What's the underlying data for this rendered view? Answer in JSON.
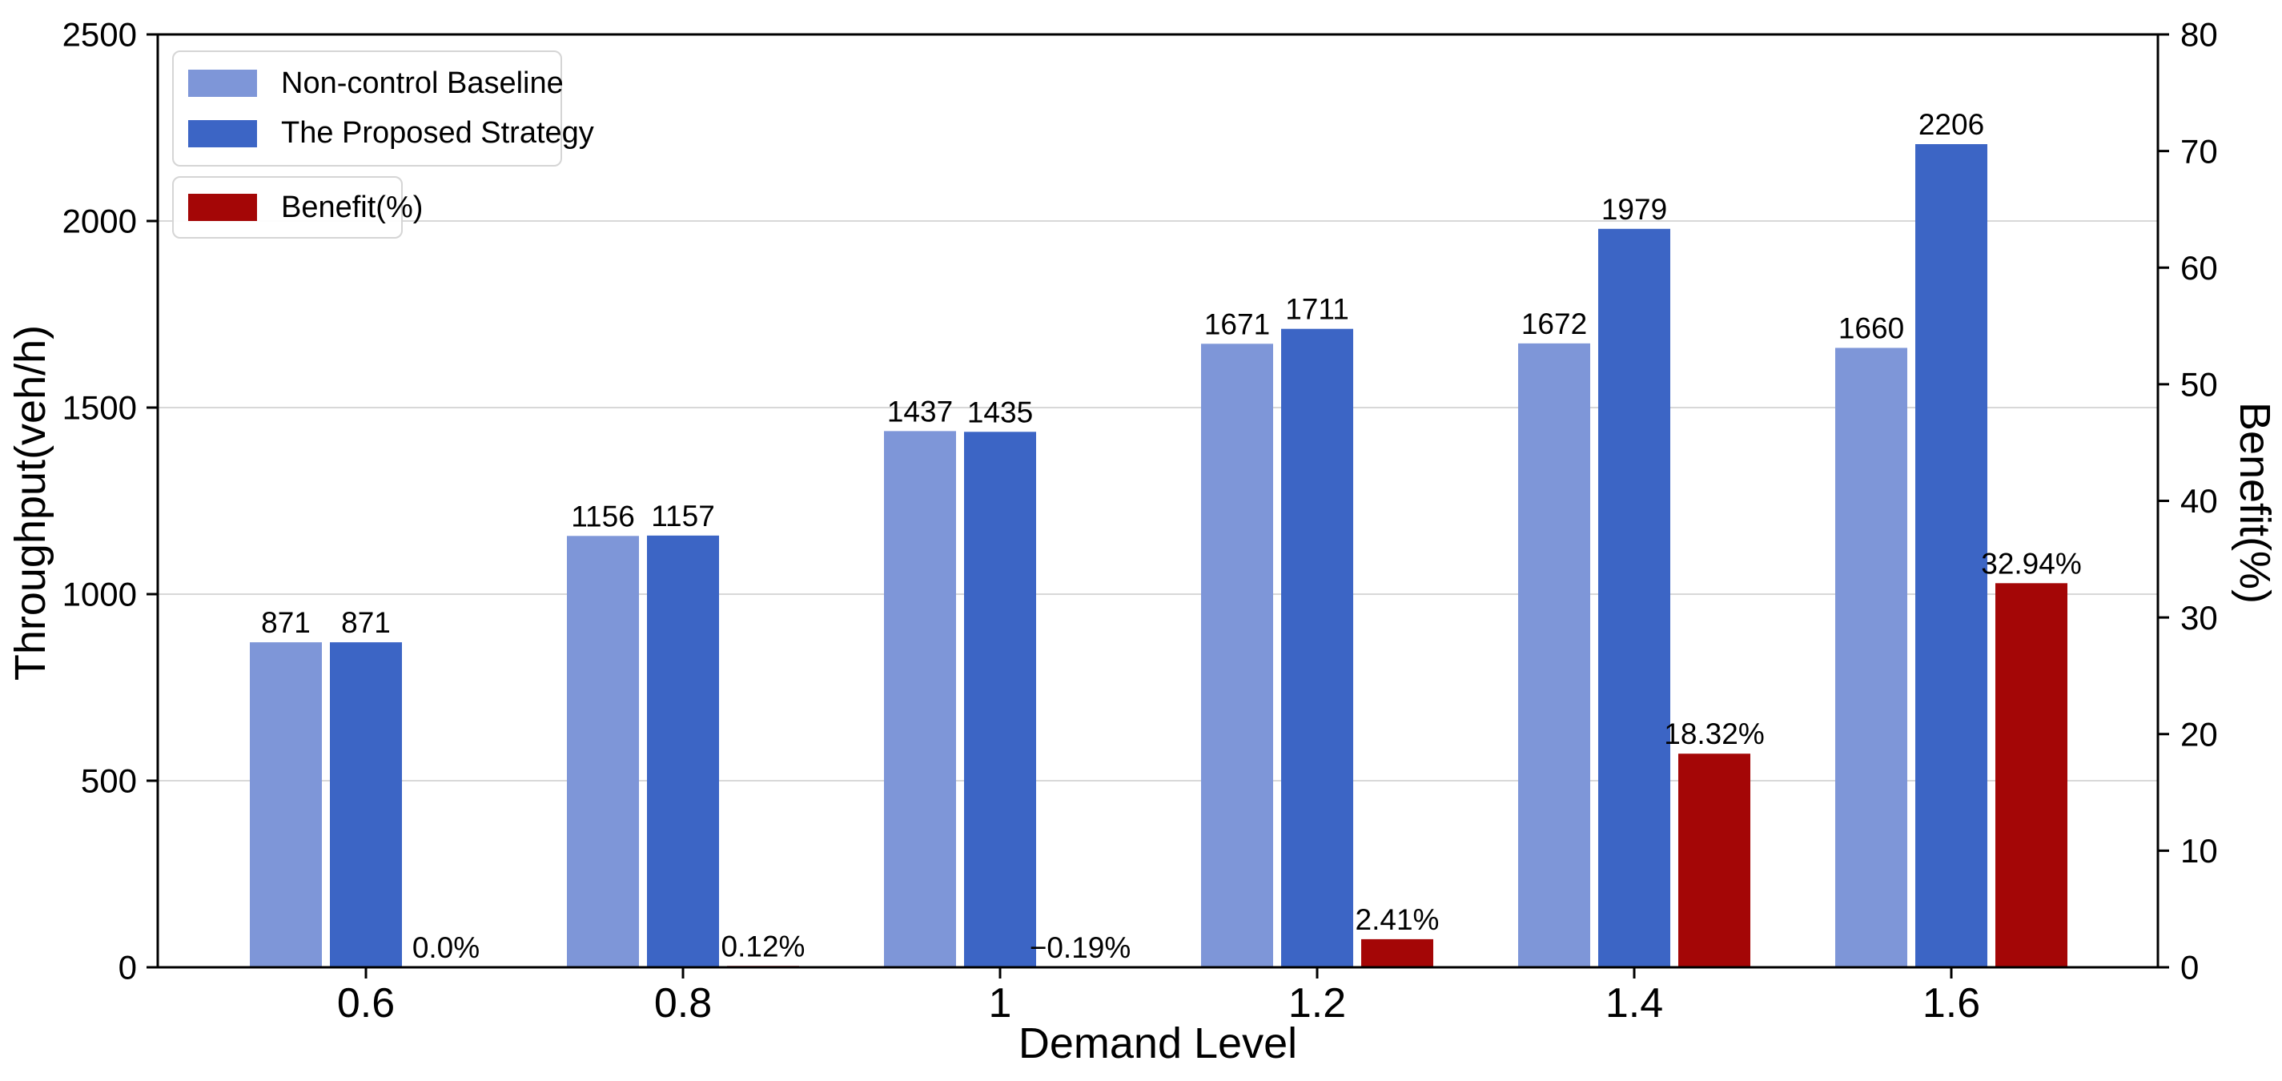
{
  "chart_data": {
    "type": "bar",
    "title": "",
    "xlabel": "Demand Level",
    "ylabel_left": "Throughput(veh/h)",
    "ylabel_right": "Benefit(%)",
    "categories": [
      "0.6",
      "0.8",
      "1",
      "1.2",
      "1.4",
      "1.6"
    ],
    "series": [
      {
        "name": "Non-control Baseline",
        "axis": "left",
        "color": "#7E96D8",
        "values": [
          871,
          1156,
          1437,
          1671,
          1672,
          1660
        ],
        "labels": [
          "871",
          "1156",
          "1437",
          "1671",
          "1672",
          "1660"
        ]
      },
      {
        "name": "The Proposed Strategy",
        "axis": "left",
        "color": "#3C65C5",
        "values": [
          871,
          1157,
          1435,
          1711,
          1979,
          2206
        ],
        "labels": [
          "871",
          "1157",
          "1435",
          "1711",
          "1979",
          "2206"
        ]
      },
      {
        "name": "Benefit(%)",
        "axis": "right",
        "color": "#A40606",
        "values": [
          0.0,
          0.12,
          -0.19,
          2.41,
          18.32,
          32.94
        ],
        "labels": [
          "0.0%",
          "0.12%",
          "−0.19%",
          "2.41%",
          "18.32%",
          "32.94%"
        ]
      }
    ],
    "left_axis": {
      "min": 0,
      "max": 2500,
      "tick_values": [
        0,
        500,
        1000,
        1500,
        2000,
        2500
      ],
      "tick_labels": [
        "0",
        "500",
        "1000",
        "1500",
        "2000",
        "2500"
      ]
    },
    "right_axis": {
      "min": 0,
      "max": 80,
      "tick_values": [
        0,
        10,
        20,
        30,
        40,
        50,
        60,
        70,
        80
      ],
      "tick_labels": [
        "0",
        "10",
        "20",
        "30",
        "40",
        "50",
        "60",
        "70",
        "80"
      ]
    },
    "grid": true,
    "grid_color": "#d8d8d8",
    "legend_position": "upper-left"
  }
}
